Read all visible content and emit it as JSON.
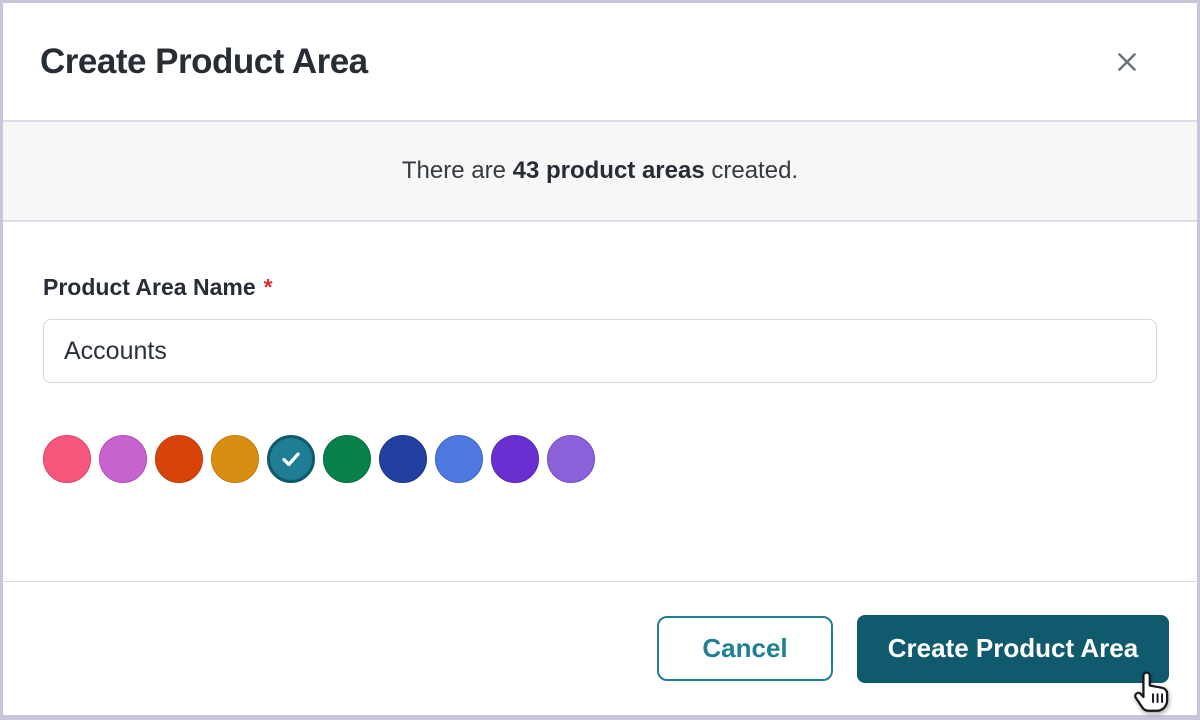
{
  "modal": {
    "title": "Create Product Area"
  },
  "banner": {
    "text_prefix": "There are ",
    "text_bold": "43 product areas",
    "text_suffix": " created."
  },
  "form": {
    "name_label": "Product Area Name",
    "required_marker": "*",
    "name_value": "Accounts"
  },
  "colors": {
    "selected_index": 4,
    "swatches": [
      {
        "name": "rose",
        "hex": "#f6577c",
        "border": "#df4063"
      },
      {
        "name": "orchid",
        "hex": "#c763ce",
        "border": "#b04cb8"
      },
      {
        "name": "vermilion",
        "hex": "#d8430a",
        "border": "#c03a08"
      },
      {
        "name": "amber",
        "hex": "#d98e12",
        "border": "#c17a0c"
      },
      {
        "name": "teal",
        "hex": "#1f7e93",
        "border": "#0d5a6b"
      },
      {
        "name": "green",
        "hex": "#088049",
        "border": "#066b3d"
      },
      {
        "name": "navy",
        "hex": "#21409f",
        "border": "#1a3488"
      },
      {
        "name": "blue",
        "hex": "#4c78df",
        "border": "#3c63c5"
      },
      {
        "name": "violet",
        "hex": "#6a2fd1",
        "border": "#5826b3"
      },
      {
        "name": "lavender",
        "hex": "#8a61d8",
        "border": "#7650bd"
      }
    ]
  },
  "footer": {
    "cancel_label": "Cancel",
    "create_label": "Create Product Area"
  },
  "theme": {
    "accent_teal": "#0f5a6d",
    "outline_teal": "#1f8093",
    "required_red": "#e12d2d",
    "border_lavender": "#c9c5da",
    "banner_bg": "#f7f7f8"
  }
}
